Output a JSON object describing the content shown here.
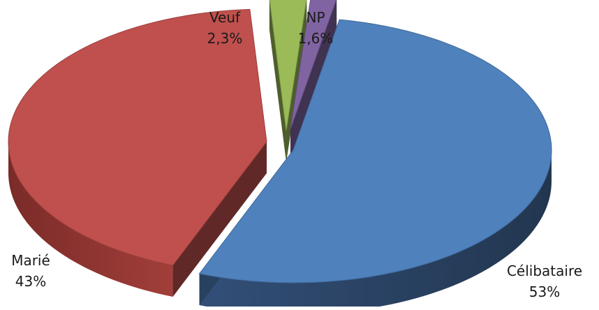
{
  "chart_data": {
    "type": "pie",
    "style": "3d-exploded",
    "title": "",
    "legend": "none",
    "slices": [
      {
        "category": "Célibataire",
        "value": 53,
        "value_label": "53%",
        "color": "#4F81BD"
      },
      {
        "category": "Marié",
        "value": 43,
        "value_label": "43%",
        "color": "#C0504D"
      },
      {
        "category": "Veuf",
        "value": 2.3,
        "value_label": "2,3%",
        "color": "#9BBB59"
      },
      {
        "category": "NP",
        "value": 1.6,
        "value_label": "1,6%",
        "color": "#8064A2"
      }
    ]
  }
}
